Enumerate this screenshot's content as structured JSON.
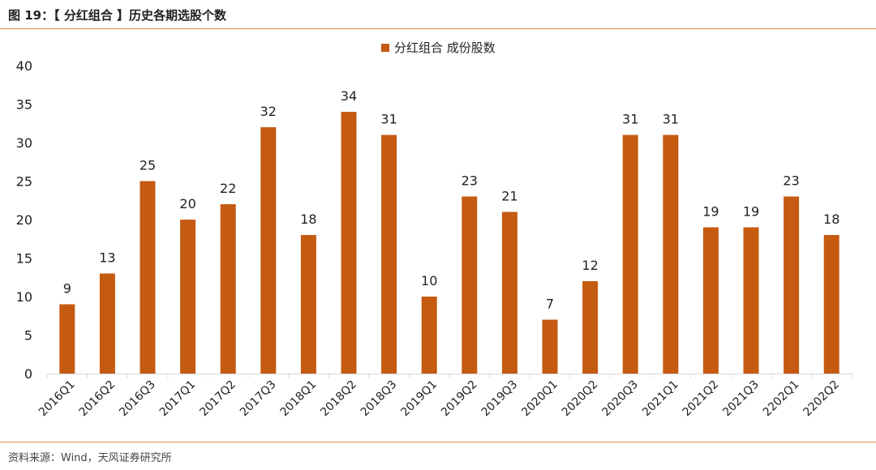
{
  "header": {
    "title": "图 19：【 分红组合 】历史各期选股个数"
  },
  "footer": {
    "source": "资料来源：Wind，天风证券研究所"
  },
  "chart_data": {
    "type": "bar",
    "title": "",
    "xlabel": "",
    "ylabel": "",
    "ylim": [
      0,
      40
    ],
    "yticks": [
      0,
      5,
      10,
      15,
      20,
      25,
      30,
      35,
      40
    ],
    "grid": false,
    "legend_position": "top-center",
    "categories": [
      "2016Q1",
      "2016Q2",
      "2016Q3",
      "2017Q1",
      "2017Q2",
      "2017Q3",
      "2018Q1",
      "2018Q2",
      "2018Q3",
      "2019Q1",
      "2019Q2",
      "2019Q3",
      "2020Q1",
      "2020Q2",
      "2020Q3",
      "2021Q1",
      "2021Q2",
      "2021Q3",
      "2202Q1",
      "2202Q2"
    ],
    "series": [
      {
        "name": "分红组合 成份股数",
        "color": "#c55a11",
        "values": [
          9,
          13,
          25,
          20,
          22,
          32,
          18,
          34,
          31,
          10,
          23,
          21,
          7,
          12,
          31,
          31,
          19,
          19,
          23,
          18
        ]
      }
    ]
  }
}
